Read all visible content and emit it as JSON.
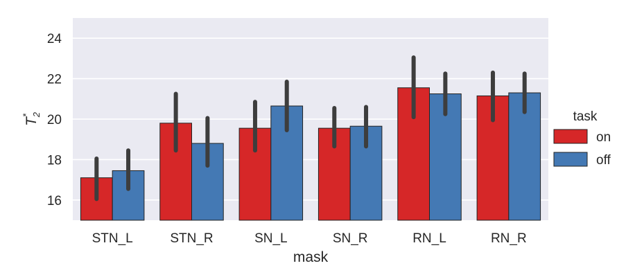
{
  "chart_data": {
    "type": "bar",
    "categories": [
      "STN_L",
      "STN_R",
      "SN_L",
      "SN_R",
      "RN_L",
      "RN_R"
    ],
    "series": [
      {
        "name": "on",
        "color": "#d62728",
        "values": [
          17.1,
          19.8,
          19.55,
          19.55,
          21.55,
          21.15
        ],
        "ci_low": [
          16.05,
          18.45,
          18.45,
          18.65,
          20.1,
          19.95
        ],
        "ci_high": [
          18.05,
          21.25,
          20.85,
          20.55,
          23.05,
          22.3
        ]
      },
      {
        "name": "off",
        "color": "#4479b4",
        "values": [
          17.45,
          18.8,
          20.65,
          19.65,
          21.25,
          21.3
        ],
        "ci_low": [
          16.55,
          17.7,
          19.45,
          18.65,
          20.25,
          20.35
        ],
        "ci_high": [
          18.45,
          20.05,
          21.85,
          20.6,
          22.25,
          22.25
        ]
      }
    ],
    "xlabel": "mask",
    "ylabel": "T",
    "ylabel_sub": "2",
    "ylabel_sup": "*",
    "ylim": [
      15,
      25
    ],
    "yticks": [
      "16",
      "18",
      "20",
      "22",
      "24"
    ],
    "legend": {
      "title": "task",
      "placement": "right"
    },
    "grid": true
  }
}
